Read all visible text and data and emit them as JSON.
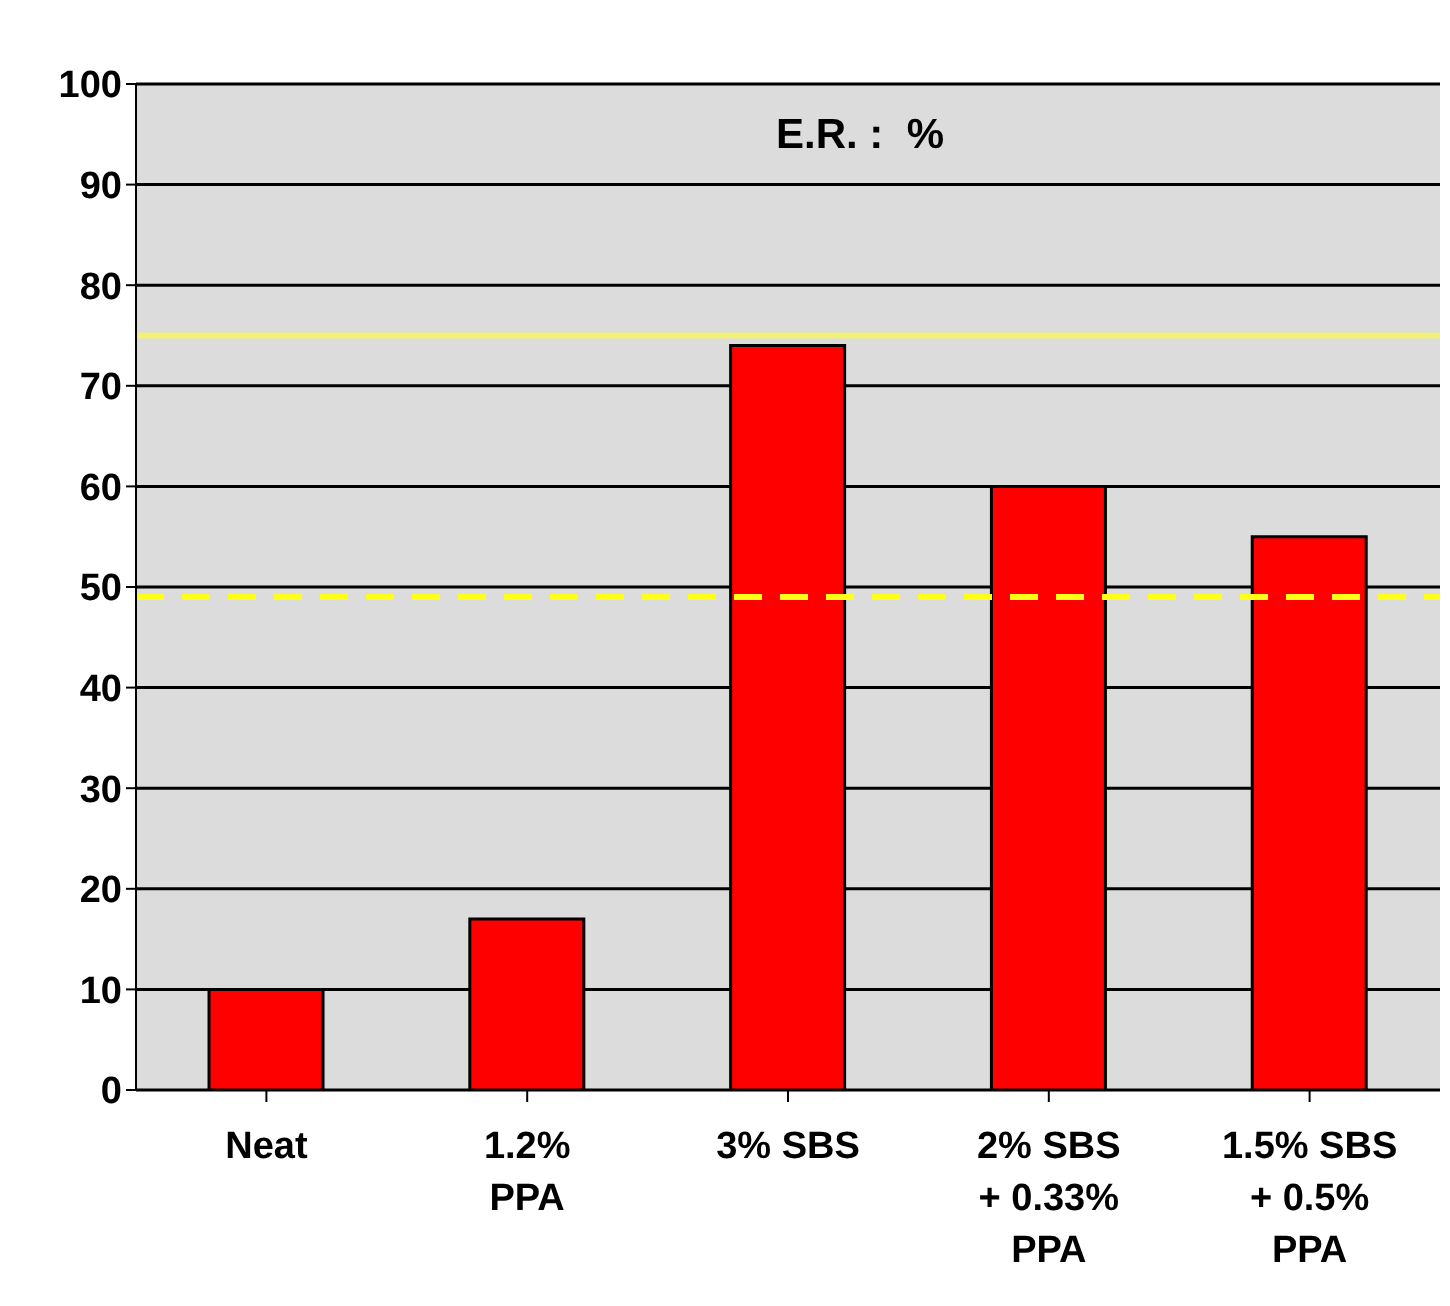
{
  "chart_data": {
    "type": "bar",
    "title": "E.R. :  %",
    "categories": [
      "Neat",
      "1.2%\nPPA",
      "3% SBS",
      "2% SBS\n+ 0.33%\nPPA",
      "1.5% SBS\n+ 0.5%\nPPA"
    ],
    "values": [
      10,
      17,
      74,
      60,
      55
    ],
    "color": "#ff0000",
    "ylim": [
      0,
      100
    ],
    "yticks": [
      0,
      10,
      20,
      30,
      40,
      50,
      60,
      70,
      80,
      90,
      100
    ],
    "grid": "y",
    "ref_lines": [
      {
        "axis": "y",
        "value": 75,
        "color": "#f0f07a",
        "line_style": "solid"
      },
      {
        "axis": "y",
        "value": 49,
        "color": "#ffff1a",
        "line_style": "dashed"
      }
    ]
  }
}
